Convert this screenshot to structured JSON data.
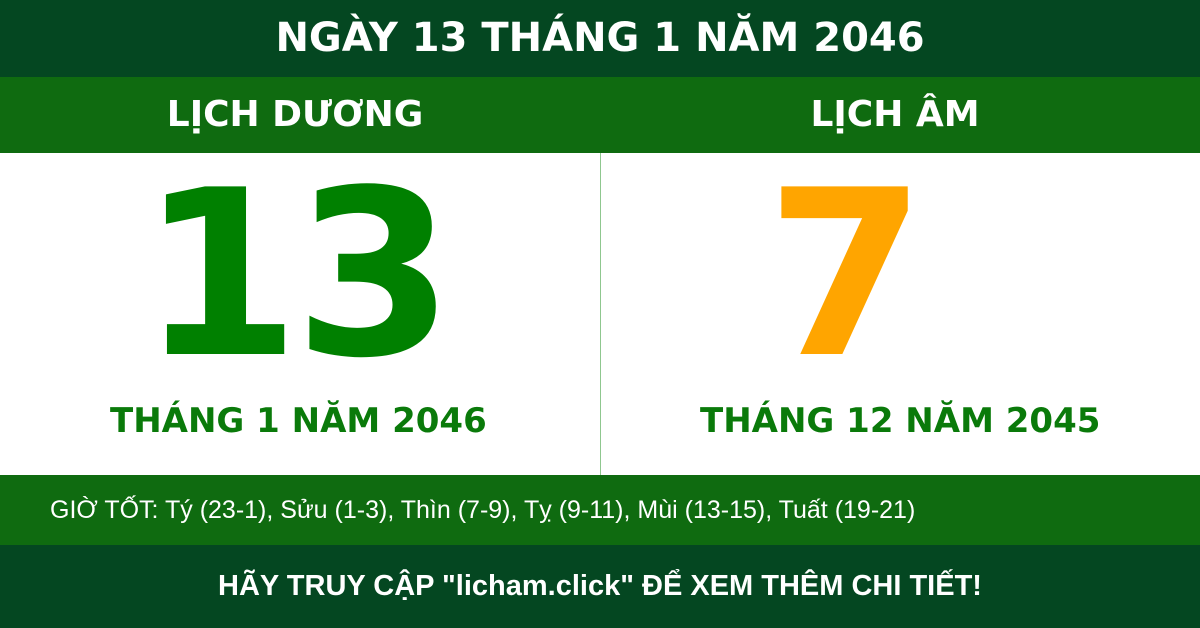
{
  "title": "NGÀY 13 THÁNG 1 NĂM 2046",
  "solar": {
    "label": "LỊCH DƯƠNG",
    "day": "13",
    "month_year": "THÁNG 1 NĂM 2046"
  },
  "lunar": {
    "label": "LỊCH ÂM",
    "day": "7",
    "month_year": "THÁNG 12 NĂM 2045"
  },
  "good_hours": "GIỜ TỐT: Tý (23-1), Sửu (1-3), Thìn (7-9), Tỵ (9-11), Mùi (13-15), Tuất (19-21)",
  "footer": "HÃY TRUY CẬP \"licham.click\" ĐỂ XEM THÊM CHI TIẾT!",
  "colors": {
    "dark_green": "#044721",
    "green": "#0f6b10",
    "solar_day": "#008000",
    "lunar_day": "#ffa500"
  }
}
